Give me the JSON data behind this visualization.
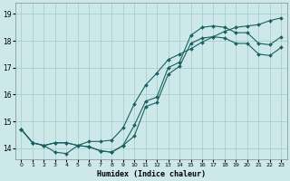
{
  "xlabel": "Humidex (Indice chaleur)",
  "bg_color": "#cce8e8",
  "grid_color": "#aacece",
  "line_color": "#1a6060",
  "xlim": [
    -0.5,
    23.5
  ],
  "ylim": [
    13.6,
    19.4
  ],
  "yticks": [
    14,
    15,
    16,
    17,
    18,
    19
  ],
  "xticks": [
    0,
    1,
    2,
    3,
    4,
    5,
    6,
    7,
    8,
    9,
    10,
    11,
    12,
    13,
    14,
    15,
    16,
    17,
    18,
    19,
    20,
    21,
    22,
    23
  ],
  "series": [
    {
      "x": [
        0,
        1,
        2,
        3,
        4,
        5,
        6,
        7,
        8,
        9,
        10,
        11,
        12,
        13,
        14,
        15,
        16,
        17,
        18,
        19,
        20,
        21,
        22,
        23
      ],
      "y": [
        14.7,
        14.2,
        14.1,
        13.85,
        13.8,
        14.1,
        14.25,
        14.25,
        14.3,
        14.75,
        15.65,
        16.35,
        16.8,
        17.3,
        17.5,
        17.7,
        17.95,
        18.15,
        18.35,
        18.5,
        18.55,
        18.6,
        18.75,
        18.85
      ]
    },
    {
      "x": [
        0,
        1,
        2,
        3,
        4,
        5,
        6,
        7,
        8,
        9,
        10,
        11,
        12,
        13,
        14,
        15,
        16,
        17,
        18,
        19,
        20,
        21,
        22,
        23
      ],
      "y": [
        14.7,
        14.2,
        14.1,
        14.2,
        14.2,
        14.1,
        14.05,
        13.9,
        13.85,
        14.1,
        14.85,
        15.75,
        15.9,
        17.0,
        17.2,
        18.2,
        18.5,
        18.55,
        18.5,
        18.3,
        18.3,
        17.9,
        17.85,
        18.15
      ]
    },
    {
      "x": [
        0,
        1,
        2,
        3,
        4,
        5,
        6,
        7,
        8,
        9,
        10,
        11,
        12,
        13,
        14,
        15,
        16,
        17,
        18,
        19,
        20,
        21,
        22,
        23
      ],
      "y": [
        14.7,
        14.2,
        14.1,
        14.2,
        14.2,
        14.1,
        14.05,
        13.9,
        13.85,
        14.1,
        14.45,
        15.55,
        15.7,
        16.75,
        17.05,
        17.9,
        18.1,
        18.15,
        18.1,
        17.9,
        17.9,
        17.5,
        17.45,
        17.75
      ]
    }
  ]
}
